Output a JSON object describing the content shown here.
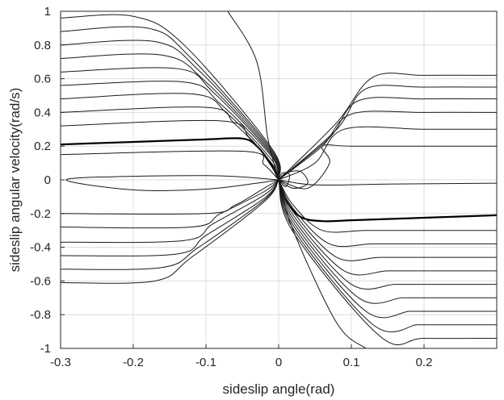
{
  "chart_data": {
    "type": "line",
    "title": "",
    "xlabel": "sideslip angle(rad)",
    "ylabel": "sideslip angular velocity(rad/s)",
    "xlim": [
      -0.3,
      0.3
    ],
    "ylim": [
      -1,
      1
    ],
    "grid": true,
    "x_ticks": [
      -0.3,
      -0.2,
      -0.1,
      0,
      0.1,
      0.2
    ],
    "y_ticks": [
      1,
      0.8,
      0.6,
      0.4,
      0.2,
      0,
      -0.2,
      -0.4,
      -0.6,
      -0.8,
      -1
    ],
    "x_tick_labels": [
      "-0.3",
      "-0.2",
      "-0.1",
      "0",
      "0.1",
      "0.2"
    ],
    "y_tick_labels": [
      "1",
      "0.8",
      "0.6",
      "0.4",
      "0.2",
      "0",
      "-0.2",
      "-0.4",
      "-0.6",
      "-0.8",
      "-1"
    ],
    "colors": {
      "trajectory": "#1a1a1a",
      "separatrix": "#000000",
      "grid": "#dcdcdc",
      "axes": "#262626"
    },
    "series": [
      {
        "role": "separatrix",
        "x": [
          -0.3,
          -0.2,
          -0.1,
          -0.05,
          -0.03,
          -0.01,
          0
        ],
        "y": [
          0.21,
          0.225,
          0.24,
          0.245,
          0.2,
          0.09,
          0
        ]
      },
      {
        "role": "separatrix",
        "x": [
          0,
          0.01,
          0.03,
          0.06,
          0.1,
          0.2,
          0.3
        ],
        "y": [
          0,
          -0.12,
          -0.22,
          -0.245,
          -0.24,
          -0.225,
          -0.21
        ]
      },
      {
        "role": "trajectory",
        "x": [
          0,
          0.05,
          0.15,
          0.3
        ],
        "y": [
          0,
          -0.03,
          -0.025,
          -0.02
        ]
      },
      {
        "role": "trajectory",
        "x": [
          0,
          -0.1,
          -0.29,
          -0.2,
          -0.1,
          -0.03,
          0
        ],
        "y": [
          0,
          0.025,
          0.005,
          -0.06,
          -0.055,
          -0.02,
          0
        ]
      },
      {
        "role": "trajectory",
        "x": [
          -0.3,
          -0.05,
          -0.02,
          0
        ],
        "y": [
          0.15,
          0.17,
          0.09,
          0
        ]
      },
      {
        "role": "trajectory",
        "x": [
          -0.3,
          -0.08,
          -0.04,
          -0.01,
          0
        ],
        "y": [
          0.32,
          0.35,
          0.25,
          0.08,
          0
        ]
      },
      {
        "role": "trajectory",
        "x": [
          -0.3,
          -0.1,
          -0.06,
          -0.01,
          0
        ],
        "y": [
          0.4,
          0.43,
          0.33,
          0.1,
          0
        ]
      },
      {
        "role": "trajectory",
        "x": [
          -0.3,
          -0.12,
          -0.07,
          -0.01,
          0
        ],
        "y": [
          0.48,
          0.51,
          0.39,
          0.12,
          0
        ]
      },
      {
        "role": "trajectory",
        "x": [
          -0.3,
          -0.13,
          -0.08,
          -0.01,
          0
        ],
        "y": [
          0.56,
          0.58,
          0.45,
          0.14,
          0
        ]
      },
      {
        "role": "trajectory",
        "x": [
          -0.3,
          -0.14,
          -0.09,
          -0.01,
          0
        ],
        "y": [
          0.64,
          0.66,
          0.52,
          0.15,
          0
        ]
      },
      {
        "role": "trajectory",
        "x": [
          -0.3,
          -0.16,
          -0.1,
          -0.01,
          0
        ],
        "y": [
          0.72,
          0.74,
          0.58,
          0.16,
          0
        ]
      },
      {
        "role": "trajectory",
        "x": [
          -0.3,
          -0.17,
          -0.11,
          -0.01,
          0
        ],
        "y": [
          0.8,
          0.82,
          0.65,
          0.17,
          0
        ]
      },
      {
        "role": "trajectory",
        "x": [
          -0.3,
          -0.18,
          -0.12,
          -0.01,
          0
        ],
        "y": [
          0.88,
          0.9,
          0.72,
          0.18,
          0
        ]
      },
      {
        "role": "trajectory",
        "x": [
          -0.3,
          -0.2,
          -0.13,
          -0.01,
          0
        ],
        "y": [
          0.96,
          0.97,
          0.8,
          0.19,
          0
        ]
      },
      {
        "role": "trajectory",
        "x": [
          -0.07,
          -0.03,
          -0.015,
          0
        ],
        "y": [
          1,
          0.7,
          0.25,
          0
        ]
      },
      {
        "role": "trajectory",
        "x": [
          0,
          0.01,
          0.015,
          0.005,
          0
        ],
        "y": [
          0,
          -0.04,
          0.03,
          0.04,
          0
        ]
      },
      {
        "role": "trajectory",
        "x": [
          0,
          0.02,
          0.04,
          0.03,
          0.01,
          0
        ],
        "y": [
          0,
          -0.05,
          -0.02,
          0.05,
          0.04,
          0
        ]
      },
      {
        "role": "trajectory",
        "x": [
          0,
          0.04,
          0.07,
          0.06,
          0.1,
          0.2,
          0.3
        ],
        "y": [
          0,
          -0.05,
          0.1,
          0.2,
          0.2,
          0.2,
          0.2
        ]
      },
      {
        "role": "trajectory",
        "x": [
          0,
          0.05,
          0.09,
          0.2,
          0.3
        ],
        "y": [
          0,
          0.1,
          0.3,
          0.3,
          0.3
        ]
      },
      {
        "role": "trajectory",
        "x": [
          0,
          0.06,
          0.1,
          0.2,
          0.3
        ],
        "y": [
          0,
          0.2,
          0.39,
          0.4,
          0.4
        ]
      },
      {
        "role": "trajectory",
        "x": [
          0,
          0.07,
          0.11,
          0.2,
          0.3
        ],
        "y": [
          0,
          0.25,
          0.47,
          0.48,
          0.48
        ]
      },
      {
        "role": "trajectory",
        "x": [
          0,
          0.08,
          0.12,
          0.2,
          0.3
        ],
        "y": [
          0,
          0.3,
          0.54,
          0.55,
          0.55
        ]
      },
      {
        "role": "trajectory",
        "x": [
          0,
          0.08,
          0.13,
          0.2,
          0.3
        ],
        "y": [
          0,
          0.34,
          0.61,
          0.62,
          0.62
        ]
      },
      {
        "role": "trajectory",
        "x": [
          -0.3,
          -0.1,
          -0.06,
          -0.02,
          0
        ],
        "y": [
          -0.2,
          -0.2,
          -0.15,
          -0.05,
          0
        ]
      },
      {
        "role": "trajectory",
        "x": [
          -0.3,
          -0.12,
          -0.08,
          -0.02,
          0
        ],
        "y": [
          -0.28,
          -0.28,
          -0.2,
          -0.07,
          0
        ]
      },
      {
        "role": "trajectory",
        "x": [
          -0.3,
          -0.13,
          -0.09,
          -0.02,
          0
        ],
        "y": [
          -0.37,
          -0.36,
          -0.26,
          -0.09,
          0
        ]
      },
      {
        "role": "trajectory",
        "x": [
          -0.3,
          -0.14,
          -0.1,
          -0.02,
          0
        ],
        "y": [
          -0.45,
          -0.44,
          -0.33,
          -0.11,
          0
        ]
      },
      {
        "role": "trajectory",
        "x": [
          -0.3,
          -0.16,
          -0.11,
          -0.02,
          0
        ],
        "y": [
          -0.53,
          -0.52,
          -0.4,
          -0.12,
          0
        ]
      },
      {
        "role": "trajectory",
        "x": [
          -0.3,
          -0.17,
          -0.12,
          -0.02,
          0
        ],
        "y": [
          -0.61,
          -0.6,
          -0.46,
          -0.13,
          0
        ]
      },
      {
        "role": "trajectory",
        "x": [
          0,
          0.02,
          0.06,
          0.12,
          0.2,
          0.3
        ],
        "y": [
          0,
          -0.15,
          -0.3,
          -0.3,
          -0.3,
          -0.3
        ]
      },
      {
        "role": "trajectory",
        "x": [
          0,
          0.02,
          0.07,
          0.13,
          0.2,
          0.3
        ],
        "y": [
          0,
          -0.17,
          -0.38,
          -0.38,
          -0.38,
          -0.38
        ]
      },
      {
        "role": "trajectory",
        "x": [
          0,
          0.02,
          0.08,
          0.14,
          0.2,
          0.3
        ],
        "y": [
          0,
          -0.19,
          -0.46,
          -0.46,
          -0.46,
          -0.46
        ]
      },
      {
        "role": "trajectory",
        "x": [
          0,
          0.02,
          0.09,
          0.15,
          0.2,
          0.3
        ],
        "y": [
          0,
          -0.21,
          -0.54,
          -0.54,
          -0.54,
          -0.54
        ]
      },
      {
        "role": "trajectory",
        "x": [
          0,
          0.02,
          0.1,
          0.16,
          0.2,
          0.3
        ],
        "y": [
          0,
          -0.23,
          -0.62,
          -0.62,
          -0.62,
          -0.62
        ]
      },
      {
        "role": "trajectory",
        "x": [
          0,
          0.02,
          0.11,
          0.17,
          0.2,
          0.3
        ],
        "y": [
          0,
          -0.25,
          -0.7,
          -0.7,
          -0.7,
          -0.7
        ]
      },
      {
        "role": "trajectory",
        "x": [
          0,
          0.02,
          0.12,
          0.18,
          0.2,
          0.3
        ],
        "y": [
          0,
          -0.27,
          -0.78,
          -0.78,
          -0.78,
          -0.78
        ]
      },
      {
        "role": "trajectory",
        "x": [
          0,
          0.02,
          0.13,
          0.19,
          0.2,
          0.3
        ],
        "y": [
          0,
          -0.29,
          -0.86,
          -0.86,
          -0.86,
          -0.86
        ]
      },
      {
        "role": "trajectory",
        "x": [
          0,
          0.02,
          0.14,
          0.2,
          0.3
        ],
        "y": [
          0,
          -0.31,
          -0.93,
          -0.94,
          -0.94
        ]
      },
      {
        "role": "trajectory",
        "x": [
          0,
          0.02,
          0.08,
          0.12
        ],
        "y": [
          0,
          -0.3,
          -0.85,
          -1
        ]
      }
    ]
  }
}
